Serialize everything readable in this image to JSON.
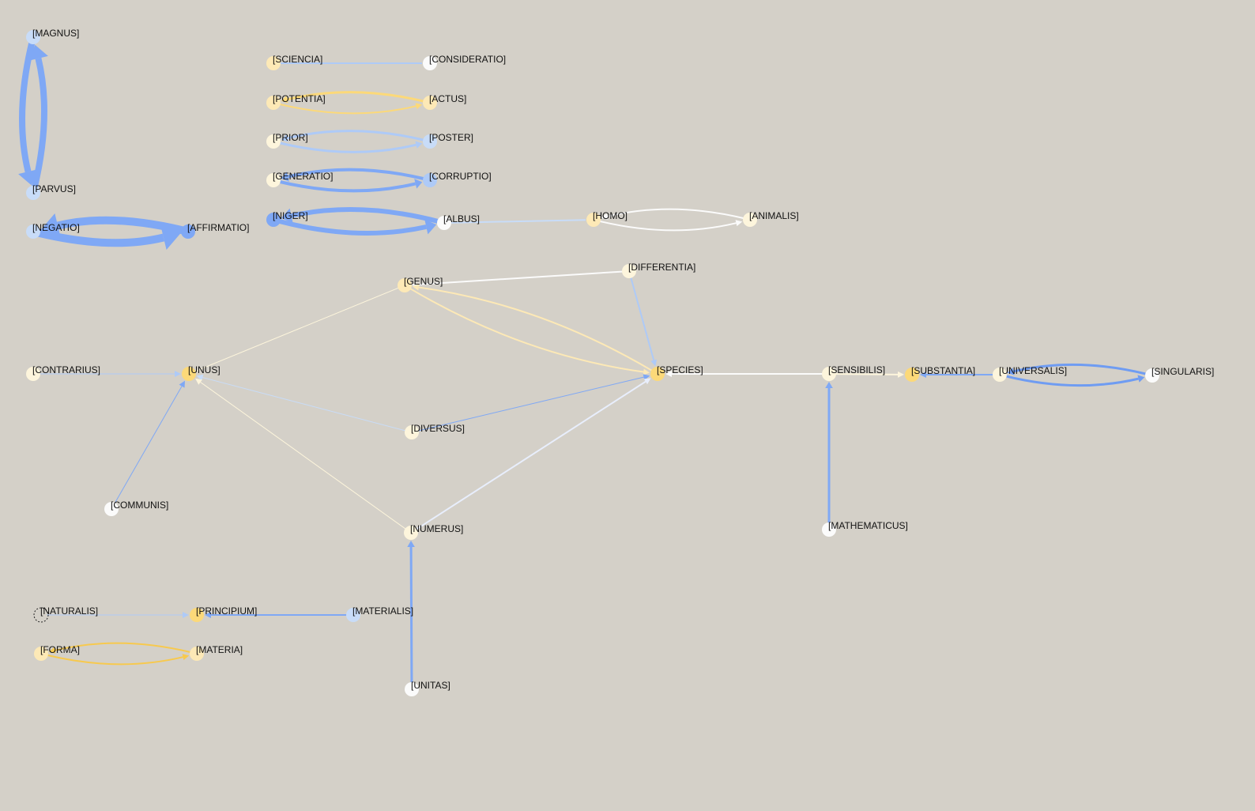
{
  "diagram": {
    "type": "concept-graph",
    "colors": {
      "background": "#d4d0c8",
      "blue": "#7fa8f5",
      "light_blue": "#aecaf7",
      "pale_blue": "#c8dcf8",
      "yellow": "#fcd979",
      "pale_yellow": "#fde9b6",
      "cream": "#fdf5dc",
      "white": "#fbfbfb",
      "dark_blue": "#6f9cf2",
      "gold": "#f7c94e"
    },
    "nodes": [
      {
        "id": "MAGNUS",
        "label": "[MAGNUS]",
        "color": "#c8dcf8"
      },
      {
        "id": "PARVUS",
        "label": "[PARVUS]",
        "color": "#c8dcf8"
      },
      {
        "id": "NEGATIO",
        "label": "[NEGATIO]",
        "color": "#c8dcf8"
      },
      {
        "id": "AFFIRMATIO",
        "label": "[AFFIRMATIO]",
        "color": "#7fa8f5"
      },
      {
        "id": "SCIENCIA",
        "label": "[SCIENCIA]",
        "color": "#fde9b6"
      },
      {
        "id": "CONSIDERATIO",
        "label": "[CONSIDERATIO]",
        "color": "#fbfbfb"
      },
      {
        "id": "POTENTIA",
        "label": "[POTENTIA]",
        "color": "#fde9b6"
      },
      {
        "id": "ACTUS",
        "label": "[ACTUS]",
        "color": "#fde9b6"
      },
      {
        "id": "PRIOR",
        "label": "[PRIOR]",
        "color": "#fdf5dc"
      },
      {
        "id": "POSTER",
        "label": "[POSTER]",
        "color": "#c8dcf8"
      },
      {
        "id": "GENERATIO",
        "label": "[GENERATIO]",
        "color": "#fdf5dc"
      },
      {
        "id": "CORRUPTIO",
        "label": "[CORRUPTIO]",
        "color": "#aecaf7"
      },
      {
        "id": "NIGER",
        "label": "[NIGER]",
        "color": "#7fa8f5"
      },
      {
        "id": "ALBUS",
        "label": "[ALBUS]",
        "color": "#fbfbfb"
      },
      {
        "id": "HOMO",
        "label": "[HOMO]",
        "color": "#fde9b6"
      },
      {
        "id": "ANIMALIS",
        "label": "[ANIMALIS]",
        "color": "#fdf5dc"
      },
      {
        "id": "GENUS",
        "label": "[GENUS]",
        "color": "#fde9b6"
      },
      {
        "id": "DIFFERENTIA",
        "label": "[DIFFERENTIA]",
        "color": "#fdf5dc"
      },
      {
        "id": "CONTRARIUS",
        "label": "[CONTRARIUS]",
        "color": "#fdf5dc"
      },
      {
        "id": "UNUS",
        "label": "[UNUS]",
        "color": "#fcd979"
      },
      {
        "id": "SPECIES",
        "label": "[SPECIES]",
        "color": "#fcd979"
      },
      {
        "id": "SENSIBILIS",
        "label": "[SENSIBILIS]",
        "color": "#fdf5dc"
      },
      {
        "id": "SUBSTANTIA",
        "label": "[SUBSTANTIA]",
        "color": "#fcd979"
      },
      {
        "id": "UNIVERSALIS",
        "label": "[UNIVERSALIS]",
        "color": "#fdf5dc"
      },
      {
        "id": "SINGULARIS",
        "label": "[SINGULARIS]",
        "color": "#fbfbfb"
      },
      {
        "id": "DIVERSUS",
        "label": "[DIVERSUS]",
        "color": "#fdf5dc"
      },
      {
        "id": "COMMUNIS",
        "label": "[COMMUNIS]",
        "color": "#fbfbfb"
      },
      {
        "id": "NUMERUS",
        "label": "[NUMERUS]",
        "color": "#fdf5dc"
      },
      {
        "id": "MATHEMATICUS",
        "label": "[MATHEMATICUS]",
        "color": "#fbfbfb"
      },
      {
        "id": "NATURALIS",
        "label": "[NATURALIS]",
        "color": "none",
        "dashed": true
      },
      {
        "id": "PRINCIPIUM",
        "label": "[PRINCIPIUM]",
        "color": "#fcd979"
      },
      {
        "id": "MATERIALIS",
        "label": "[MATERIALIS]",
        "color": "#c8dcf8"
      },
      {
        "id": "FORMA",
        "label": "[FORMA]",
        "color": "#fde9b6"
      },
      {
        "id": "MATERIA",
        "label": "[MATERIA]",
        "color": "#fde9b6"
      },
      {
        "id": "UNITAS",
        "label": "[UNITAS]",
        "color": "#fbfbfb"
      }
    ],
    "edges": [
      {
        "from": "PARVUS",
        "to": "MAGNUS",
        "color": "#7fa8f5",
        "weight": 8,
        "directed": true
      },
      {
        "from": "MAGNUS",
        "to": "PARVUS",
        "color": "#7fa8f5",
        "weight": 8,
        "directed": true
      },
      {
        "from": "NEGATIO",
        "to": "AFFIRMATIO",
        "color": "#7fa8f5",
        "weight": 10,
        "directed": true
      },
      {
        "from": "AFFIRMATIO",
        "to": "NEGATIO",
        "color": "#7fa8f5",
        "weight": 10,
        "directed": true
      },
      {
        "from": "SCIENCIA",
        "to": "CONSIDERATIO",
        "color": "#aecaf7",
        "weight": 2,
        "directed": false
      },
      {
        "from": "POTENTIA",
        "to": "ACTUS",
        "color": "#fcd979",
        "weight": 2,
        "directed": true
      },
      {
        "from": "ACTUS",
        "to": "POTENTIA",
        "color": "#fcd979",
        "weight": 3,
        "directed": true
      },
      {
        "from": "PRIOR",
        "to": "POSTER",
        "color": "#aecaf7",
        "weight": 3,
        "directed": true
      },
      {
        "from": "POSTER",
        "to": "PRIOR",
        "color": "#aecaf7",
        "weight": 3,
        "directed": true
      },
      {
        "from": "GENERATIO",
        "to": "CORRUPTIO",
        "color": "#7fa8f5",
        "weight": 4,
        "directed": true
      },
      {
        "from": "CORRUPTIO",
        "to": "GENERATIO",
        "color": "#7fa8f5",
        "weight": 4,
        "directed": true
      },
      {
        "from": "NIGER",
        "to": "ALBUS",
        "color": "#7fa8f5",
        "weight": 6,
        "directed": true
      },
      {
        "from": "ALBUS",
        "to": "NIGER",
        "color": "#7fa8f5",
        "weight": 6,
        "directed": true
      },
      {
        "from": "ALBUS",
        "to": "HOMO",
        "color": "#c8dcf8",
        "weight": 2,
        "directed": false
      },
      {
        "from": "HOMO",
        "to": "ANIMALIS",
        "color": "#fbfbfb",
        "weight": 2,
        "directed": true
      },
      {
        "from": "ANIMALIS",
        "to": "HOMO",
        "color": "#fbfbfb",
        "weight": 2,
        "directed": true
      },
      {
        "from": "DIFFERENTIA",
        "to": "GENUS",
        "color": "#fbfbfb",
        "weight": 2,
        "directed": false
      },
      {
        "from": "DIFFERENTIA",
        "to": "SPECIES",
        "color": "#aecaf7",
        "weight": 2,
        "directed": true
      },
      {
        "from": "GENUS",
        "to": "SPECIES",
        "color": "#fde9b6",
        "weight": 2,
        "directed": true
      },
      {
        "from": "SPECIES",
        "to": "GENUS",
        "color": "#fde9b6",
        "weight": 2,
        "directed": true
      },
      {
        "from": "GENUS",
        "to": "UNUS",
        "color": "#fdf5dc",
        "weight": 1,
        "directed": false
      },
      {
        "from": "CONTRARIUS",
        "to": "UNUS",
        "color": "#aecaf7",
        "weight": 1,
        "directed": true
      },
      {
        "from": "COMMUNIS",
        "to": "UNUS",
        "color": "#7fa8f5",
        "weight": 1,
        "directed": true
      },
      {
        "from": "DIVERSUS",
        "to": "UNUS",
        "color": "#c8dcf8",
        "weight": 1,
        "directed": true
      },
      {
        "from": "NUMERUS",
        "to": "UNUS",
        "color": "#fdf5dc",
        "weight": 1,
        "directed": true
      },
      {
        "from": "DIVERSUS",
        "to": "SPECIES",
        "color": "#7fa8f5",
        "weight": 1,
        "directed": true
      },
      {
        "from": "NUMERUS",
        "to": "SPECIES",
        "color": "#e8eefc",
        "weight": 2,
        "directed": true
      },
      {
        "from": "SENSIBILIS",
        "to": "SPECIES",
        "color": "#fbfbfb",
        "weight": 2,
        "directed": true
      },
      {
        "from": "SENSIBILIS",
        "to": "SUBSTANTIA",
        "color": "#fdf5dc",
        "weight": 2,
        "directed": true
      },
      {
        "from": "UNIVERSALIS",
        "to": "SUBSTANTIA",
        "color": "#7fa8f5",
        "weight": 2,
        "directed": true
      },
      {
        "from": "UNIVERSALIS",
        "to": "SINGULARIS",
        "color": "#6f9cf2",
        "weight": 3,
        "directed": true
      },
      {
        "from": "SINGULARIS",
        "to": "UNIVERSALIS",
        "color": "#6f9cf2",
        "weight": 3,
        "directed": true
      },
      {
        "from": "MATHEMATICUS",
        "to": "SENSIBILIS",
        "color": "#7fa8f5",
        "weight": 3,
        "directed": true
      },
      {
        "from": "UNITAS",
        "to": "NUMERUS",
        "color": "#7fa8f5",
        "weight": 3,
        "directed": true
      },
      {
        "from": "NATURALIS",
        "to": "PRINCIPIUM",
        "color": "#aecaf7",
        "weight": 1,
        "directed": true
      },
      {
        "from": "MATERIALIS",
        "to": "PRINCIPIUM",
        "color": "#7fa8f5",
        "weight": 2,
        "directed": true
      },
      {
        "from": "FORMA",
        "to": "MATERIA",
        "color": "#f7c94e",
        "weight": 2,
        "directed": true
      },
      {
        "from": "MATERIA",
        "to": "FORMA",
        "color": "#f7c94e",
        "weight": 2,
        "directed": true
      }
    ]
  }
}
